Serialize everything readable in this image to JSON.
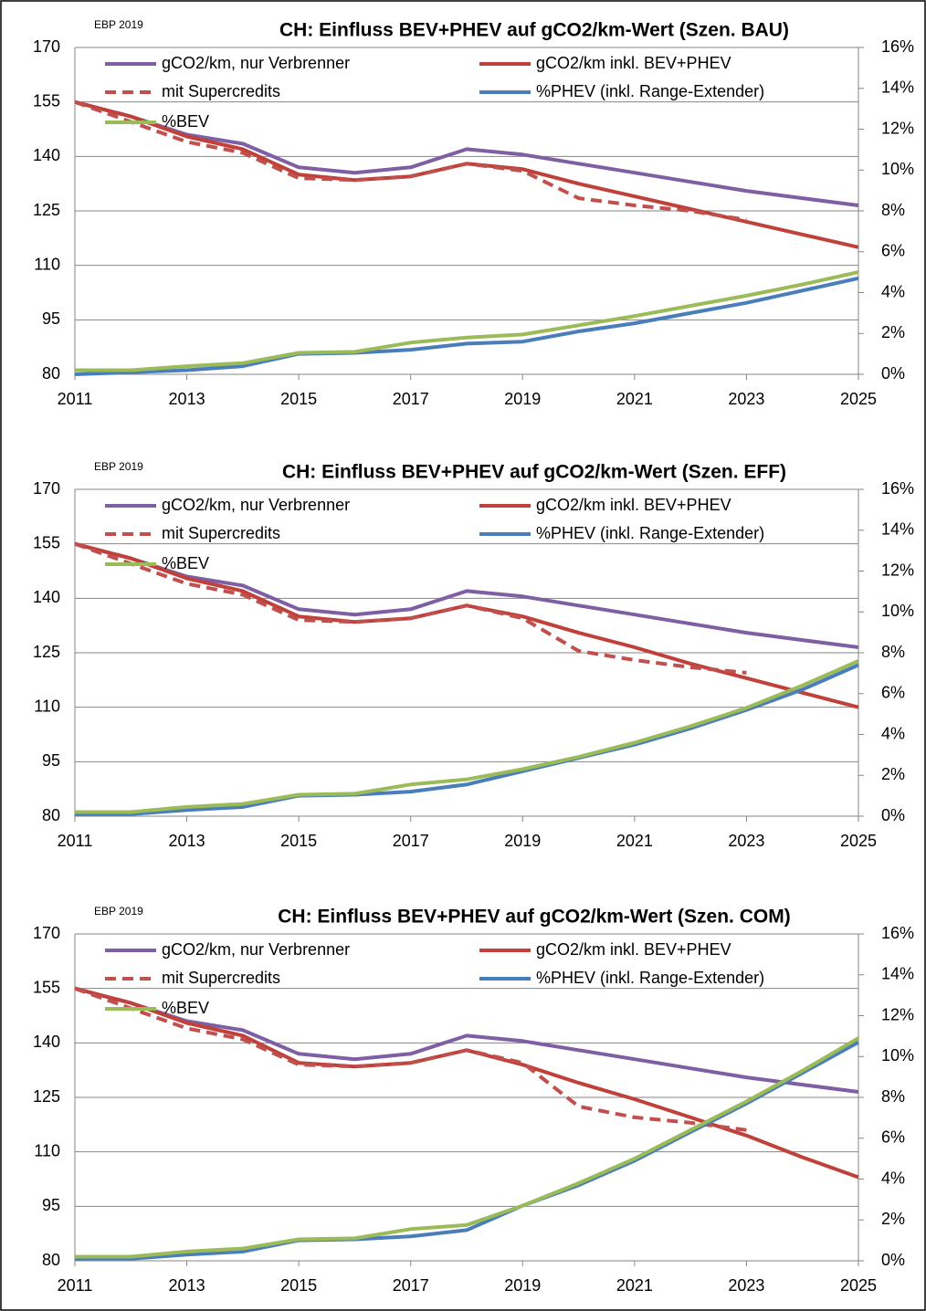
{
  "chart_data": [
    {
      "type": "line",
      "title": "CH: Einfluss BEV+PHEV auf gCO2/km-Wert (Szen. BAU)",
      "annotation": "EBP 2019",
      "x": [
        2011,
        2012,
        2013,
        2014,
        2015,
        2016,
        2017,
        2018,
        2019,
        2020,
        2021,
        2022,
        2023,
        2024,
        2025
      ],
      "xlim": [
        2011,
        2025
      ],
      "xticks": [
        2011,
        2013,
        2015,
        2017,
        2019,
        2021,
        2023,
        2025
      ],
      "ylim": [
        80,
        170
      ],
      "yticks": [
        80,
        95,
        110,
        125,
        140,
        155,
        170
      ],
      "y2lim": [
        0,
        16
      ],
      "y2ticks": [
        {
          "value": 0,
          "label": "0%"
        },
        {
          "value": 2,
          "label": "2%"
        },
        {
          "value": 4,
          "label": "4%"
        },
        {
          "value": 6,
          "label": "6%"
        },
        {
          "value": 8,
          "label": "8%"
        },
        {
          "value": 10,
          "label": "10%"
        },
        {
          "value": 12,
          "label": "12%"
        },
        {
          "value": 14,
          "label": "14%"
        },
        {
          "value": 16,
          "label": "16%"
        }
      ],
      "grid": true,
      "series": [
        {
          "name": "gCO2/km, nur Verbrenner",
          "color": "#7e5fa4",
          "values": [
            155,
            151,
            146,
            143.5,
            137,
            135.5,
            137,
            142,
            140.5,
            138,
            135.5,
            133,
            130.5,
            128.5,
            126.5
          ]
        },
        {
          "name": "gCO2/km inkl. BEV+PHEV",
          "color": "#c0403a",
          "values": [
            155,
            151,
            145.5,
            142,
            135,
            133.5,
            134.5,
            138,
            136.5,
            132.5,
            129,
            125.5,
            122,
            118.5,
            115
          ]
        },
        {
          "name": "mit Supercredits",
          "color": "#c0504d",
          "line_style": "dashed",
          "values": [
            155,
            149.5,
            144,
            141,
            134,
            133.5,
            134.5,
            138,
            136,
            128.5,
            126.5,
            125,
            122.5,
            null,
            null
          ]
        },
        {
          "name": "%PHEV (inkl. Range-Extender)",
          "color": "#4a7ebb",
          "axis": "y2",
          "values": [
            0,
            0.1,
            0.2,
            0.4,
            1,
            1.05,
            1.2,
            1.5,
            1.6,
            2.1,
            2.5,
            3,
            3.5,
            4.1,
            4.7
          ]
        },
        {
          "name": "%BEV",
          "color": "#9bbb59",
          "axis": "y2",
          "values": [
            0.2,
            0.2,
            0.4,
            0.55,
            1.05,
            1.1,
            1.55,
            1.8,
            1.95,
            2.4,
            2.85,
            3.35,
            3.85,
            4.4,
            5
          ]
        }
      ]
    },
    {
      "type": "line",
      "title": "CH: Einfluss BEV+PHEV auf gCO2/km-Wert (Szen. EFF)",
      "annotation": "EBP 2019",
      "x": [
        2011,
        2012,
        2013,
        2014,
        2015,
        2016,
        2017,
        2018,
        2019,
        2020,
        2021,
        2022,
        2023,
        2024,
        2025
      ],
      "xlim": [
        2011,
        2025
      ],
      "xticks": [
        2011,
        2013,
        2015,
        2017,
        2019,
        2021,
        2023,
        2025
      ],
      "ylim": [
        80,
        170
      ],
      "yticks": [
        80,
        95,
        110,
        125,
        140,
        155,
        170
      ],
      "y2lim": [
        0,
        16
      ],
      "y2ticks": [
        {
          "value": 0,
          "label": "0%"
        },
        {
          "value": 2,
          "label": "2%"
        },
        {
          "value": 4,
          "label": "4%"
        },
        {
          "value": 6,
          "label": "6%"
        },
        {
          "value": 8,
          "label": "8%"
        },
        {
          "value": 10,
          "label": "10%"
        },
        {
          "value": 12,
          "label": "12%"
        },
        {
          "value": 14,
          "label": "14%"
        },
        {
          "value": 16,
          "label": "16%"
        }
      ],
      "grid": true,
      "series": [
        {
          "name": "gCO2/km, nur Verbrenner",
          "color": "#7e5fa4",
          "values": [
            155,
            151,
            146,
            143.5,
            137,
            135.5,
            137,
            142,
            140.5,
            138,
            135.5,
            133,
            130.5,
            128.5,
            126.5
          ]
        },
        {
          "name": "gCO2/km inkl. BEV+PHEV",
          "color": "#c0403a",
          "values": [
            155,
            151,
            145.5,
            142,
            135,
            133.5,
            134.5,
            138,
            135,
            130.5,
            126.5,
            122,
            118,
            114,
            110
          ]
        },
        {
          "name": "mit Supercredits",
          "color": "#c0504d",
          "line_style": "dashed",
          "values": [
            155,
            149.5,
            144,
            141,
            134,
            133.5,
            134.5,
            138,
            134.5,
            125.5,
            123,
            121,
            119.5,
            null,
            null
          ]
        },
        {
          "name": "%PHEV (inkl. Range-Extender)",
          "color": "#4a7ebb",
          "axis": "y2",
          "values": [
            0.1,
            0.1,
            0.3,
            0.45,
            1,
            1.05,
            1.2,
            1.55,
            2.2,
            2.85,
            3.5,
            4.3,
            5.2,
            6.2,
            7.4
          ]
        },
        {
          "name": "%BEV",
          "color": "#9bbb59",
          "axis": "y2",
          "values": [
            0.2,
            0.2,
            0.45,
            0.6,
            1.05,
            1.1,
            1.55,
            1.8,
            2.3,
            2.9,
            3.6,
            4.4,
            5.3,
            6.4,
            7.6
          ]
        }
      ]
    },
    {
      "type": "line",
      "title": "CH: Einfluss BEV+PHEV auf gCO2/km-Wert (Szen. COM)",
      "annotation": "EBP 2019",
      "x": [
        2011,
        2012,
        2013,
        2014,
        2015,
        2016,
        2017,
        2018,
        2019,
        2020,
        2021,
        2022,
        2023,
        2024,
        2025
      ],
      "xlim": [
        2011,
        2025
      ],
      "xticks": [
        2011,
        2013,
        2015,
        2017,
        2019,
        2021,
        2023,
        2025
      ],
      "ylim": [
        80,
        170
      ],
      "yticks": [
        80,
        95,
        110,
        125,
        140,
        155,
        170
      ],
      "y2lim": [
        0,
        16
      ],
      "y2ticks": [
        {
          "value": 0,
          "label": "0%"
        },
        {
          "value": 2,
          "label": "2%"
        },
        {
          "value": 4,
          "label": "4%"
        },
        {
          "value": 6,
          "label": "6%"
        },
        {
          "value": 8,
          "label": "8%"
        },
        {
          "value": 10,
          "label": "10%"
        },
        {
          "value": 12,
          "label": "12%"
        },
        {
          "value": 14,
          "label": "14%"
        },
        {
          "value": 16,
          "label": "16%"
        }
      ],
      "grid": true,
      "series": [
        {
          "name": "gCO2/km, nur Verbrenner",
          "color": "#7e5fa4",
          "values": [
            155,
            151,
            146,
            143.5,
            137,
            135.5,
            137,
            142,
            140.5,
            138,
            135.5,
            133,
            130.5,
            128.5,
            126.5
          ]
        },
        {
          "name": "gCO2/km inkl. BEV+PHEV",
          "color": "#c0403a",
          "values": [
            155,
            151,
            145.5,
            142,
            134.5,
            133.5,
            134.5,
            138,
            134,
            129,
            124.5,
            119.5,
            114.5,
            108.5,
            103
          ]
        },
        {
          "name": "mit Supercredits",
          "color": "#c0504d",
          "line_style": "dashed",
          "values": [
            155,
            149.5,
            144,
            141,
            134,
            133.5,
            134.5,
            138,
            134.5,
            122.5,
            119.5,
            118,
            116,
            null,
            null
          ]
        },
        {
          "name": "%PHEV (inkl. Range-Extender)",
          "color": "#4a7ebb",
          "axis": "y2",
          "values": [
            0.1,
            0.1,
            0.3,
            0.45,
            1,
            1.05,
            1.2,
            1.5,
            2.7,
            3.7,
            4.9,
            6.3,
            7.7,
            9.2,
            10.7
          ]
        },
        {
          "name": "%BEV",
          "color": "#9bbb59",
          "axis": "y2",
          "values": [
            0.2,
            0.2,
            0.45,
            0.6,
            1.05,
            1.1,
            1.55,
            1.75,
            2.7,
            3.8,
            5,
            6.4,
            7.8,
            9.3,
            10.9
          ]
        }
      ]
    }
  ]
}
